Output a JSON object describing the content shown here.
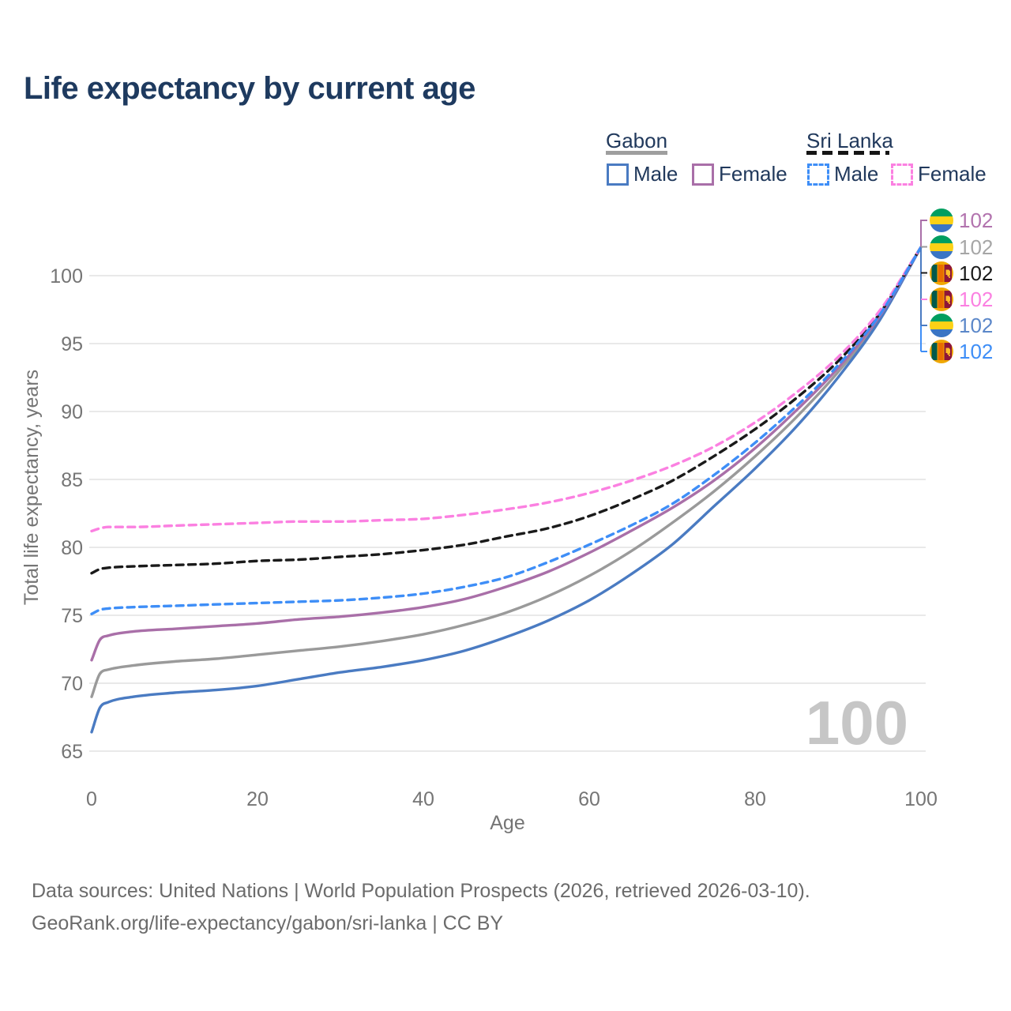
{
  "title": "Life expectancy by current age",
  "watermark": "100",
  "footer": {
    "line1": "Data sources: United Nations | World Population Prospects (2026, retrieved 2026-03-10).",
    "line2": "GeoRank.org/life-expectancy/gabon/sri-lanka | CC BY"
  },
  "colors": {
    "title_navy": "#1e3a5f",
    "gridline": "#e9e9e9",
    "tick_text": "#757575",
    "watermark_gray": "#c6c6c6",
    "gabon_male_blue": "#4a7bc2",
    "gabon_female_purple": "#a96fa8",
    "gabon_total_gray": "#9a9a9a",
    "srilanka_male_blue": "#3e8ef7",
    "srilanka_female_pink": "#fb80e1",
    "srilanka_total_black": "#1a1a1a"
  },
  "legend": {
    "groups": [
      {
        "name": "Gabon",
        "line_style": "solid",
        "underline_color": "#9e9e9e",
        "items": [
          {
            "label": "Male",
            "color": "#4a7bc2"
          },
          {
            "label": "Female",
            "color": "#a96fa8"
          }
        ]
      },
      {
        "name": "Sri Lanka",
        "line_style": "dashed",
        "underline_color": "#1a1a1a",
        "items": [
          {
            "label": "Male",
            "color": "#3e8ef7"
          },
          {
            "label": "Female",
            "color": "#fb80e1"
          }
        ]
      }
    ]
  },
  "end_labels": [
    {
      "series": "gabon-female",
      "flag": "gabon",
      "value": "102",
      "color": "#b273ae"
    },
    {
      "series": "gabon-total",
      "flag": "gabon",
      "value": "102",
      "color": "#a6a6a6"
    },
    {
      "series": "srilanka-total",
      "flag": "srilanka",
      "value": "102",
      "color": "#1a1a1a"
    },
    {
      "series": "srilanka-female",
      "flag": "srilanka",
      "value": "102",
      "color": "#fb80e1"
    },
    {
      "series": "gabon-male",
      "flag": "gabon",
      "value": "102",
      "color": "#5b87c9"
    },
    {
      "series": "srilanka-male",
      "flag": "srilanka",
      "value": "102",
      "color": "#3e8ef7"
    }
  ],
  "chart_data": {
    "type": "line",
    "title": "Life expectancy by current age",
    "xlabel": "Age",
    "ylabel": "Total life expectancy, years",
    "xlim": [
      0,
      100
    ],
    "ylim": [
      65,
      103
    ],
    "xticks": [
      0,
      20,
      40,
      60,
      80,
      100
    ],
    "yticks": [
      65,
      70,
      75,
      80,
      85,
      90,
      95,
      100
    ],
    "grid": "horizontal-only",
    "legend_position": "top-right",
    "x": [
      0,
      1,
      2,
      5,
      10,
      15,
      20,
      25,
      30,
      35,
      40,
      45,
      50,
      55,
      60,
      65,
      70,
      75,
      80,
      85,
      90,
      95,
      100
    ],
    "series": [
      {
        "name": "Gabon Total",
        "country": "Gabon",
        "sex": "Total",
        "style": "solid",
        "color": "#9a9a9a",
        "values": [
          69.0,
          70.7,
          71.0,
          71.3,
          71.6,
          71.8,
          72.1,
          72.4,
          72.7,
          73.1,
          73.6,
          74.3,
          75.2,
          76.4,
          77.9,
          79.7,
          81.8,
          84.1,
          86.7,
          89.6,
          92.9,
          96.8,
          102.1
        ]
      },
      {
        "name": "Gabon Male",
        "country": "Gabon",
        "sex": "Male",
        "style": "solid",
        "color": "#4a7bc2",
        "values": [
          66.4,
          68.2,
          68.6,
          69.0,
          69.3,
          69.5,
          69.8,
          70.3,
          70.8,
          71.2,
          71.7,
          72.4,
          73.4,
          74.6,
          76.1,
          78.0,
          80.2,
          83.0,
          85.8,
          88.9,
          92.5,
          96.7,
          102.1
        ]
      },
      {
        "name": "Gabon Female",
        "country": "Gabon",
        "sex": "Female",
        "style": "solid",
        "color": "#a96fa8",
        "values": [
          71.7,
          73.2,
          73.5,
          73.8,
          74.0,
          74.2,
          74.4,
          74.7,
          74.9,
          75.2,
          75.6,
          76.2,
          77.1,
          78.2,
          79.6,
          81.2,
          82.9,
          84.9,
          87.3,
          90.1,
          93.2,
          97.0,
          102.1
        ]
      },
      {
        "name": "Sri Lanka Total",
        "country": "Sri Lanka",
        "sex": "Total",
        "style": "dashed",
        "color": "#1a1a1a",
        "values": [
          78.1,
          78.4,
          78.5,
          78.6,
          78.7,
          78.8,
          79.0,
          79.1,
          79.3,
          79.5,
          79.8,
          80.2,
          80.8,
          81.4,
          82.3,
          83.5,
          84.9,
          86.7,
          88.7,
          91.0,
          93.7,
          97.2,
          102.1
        ]
      },
      {
        "name": "Sri Lanka Female",
        "country": "Sri Lanka",
        "sex": "Female",
        "style": "dashed",
        "color": "#fb80e1",
        "values": [
          81.2,
          81.4,
          81.5,
          81.5,
          81.6,
          81.7,
          81.8,
          81.9,
          81.9,
          82.0,
          82.1,
          82.4,
          82.8,
          83.3,
          84.0,
          84.9,
          86.0,
          87.4,
          89.2,
          91.4,
          94.0,
          97.4,
          102.1
        ]
      },
      {
        "name": "Sri Lanka Male",
        "country": "Sri Lanka",
        "sex": "Male",
        "style": "dashed",
        "color": "#3e8ef7",
        "values": [
          75.1,
          75.4,
          75.5,
          75.6,
          75.7,
          75.8,
          75.9,
          76.0,
          76.1,
          76.3,
          76.6,
          77.1,
          77.8,
          78.9,
          80.2,
          81.6,
          83.2,
          85.3,
          87.7,
          90.4,
          93.4,
          97.1,
          102.1
        ]
      }
    ],
    "end_value_label": "102"
  },
  "flags": {
    "gabon": {
      "green": "#009e60",
      "yellow": "#fcd116",
      "blue": "#3a75c4"
    },
    "srilanka": {
      "gold": "#f0a804",
      "green": "#00594c",
      "orange": "#e86c00",
      "maroon": "#8d153a",
      "lion": "#ffbe29"
    }
  }
}
